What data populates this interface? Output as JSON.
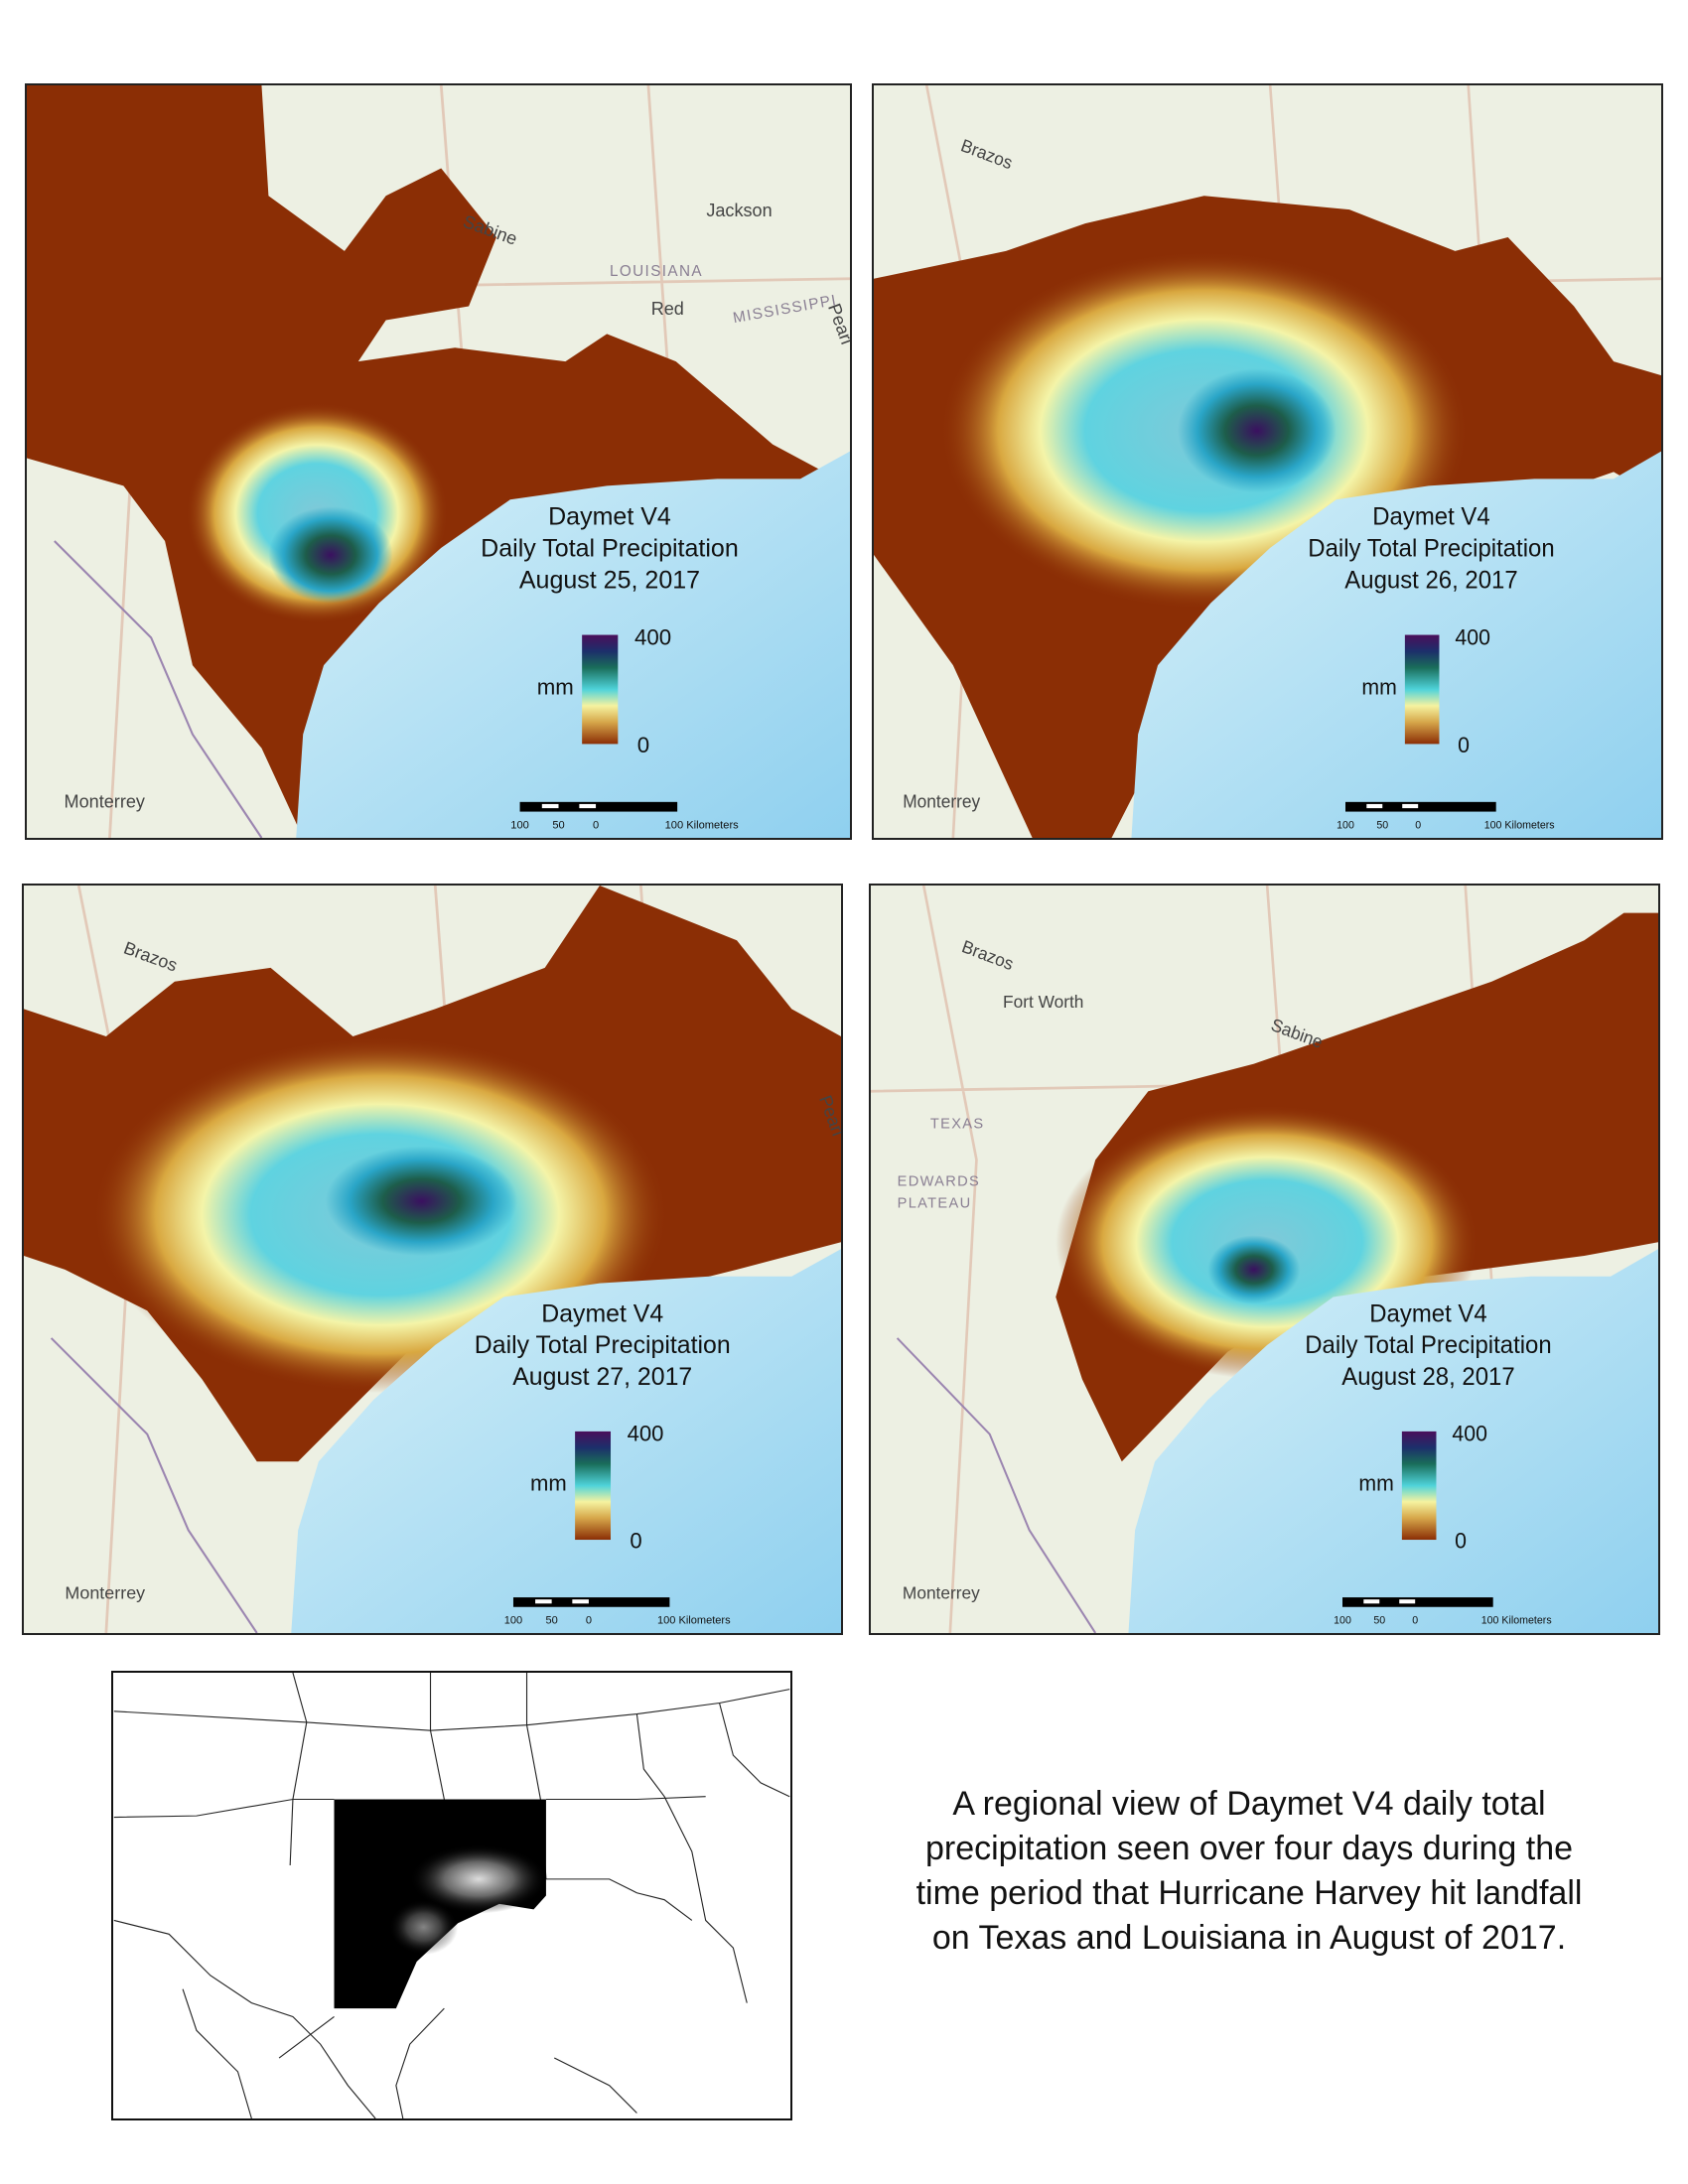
{
  "panels": [
    {
      "title": "Daymet V4",
      "subtitle": "Daily Total Precipitation",
      "date": "August 25, 2017",
      "legend": {
        "max": 400,
        "unit": "mm",
        "min": 0
      },
      "scale_bar": [
        "100",
        "50",
        "0",
        "100 Kilometers"
      ],
      "places": [
        "Jackson",
        "LOUISIANA",
        "MISSISSIPPI",
        "Sabine",
        "Red",
        "Pearl",
        "Monterrey"
      ]
    },
    {
      "title": "Daymet V4",
      "subtitle": "Daily Total Precipitation",
      "date": "August 26, 2017",
      "legend": {
        "max": 400,
        "unit": "mm",
        "min": 0
      },
      "scale_bar": [
        "100",
        "50",
        "0",
        "100 Kilometers"
      ],
      "places": [
        "Brazos",
        "Monterrey"
      ]
    },
    {
      "title": "Daymet V4",
      "subtitle": "Daily Total Precipitation",
      "date": "August 27, 2017",
      "legend": {
        "max": 400,
        "unit": "mm",
        "min": 0
      },
      "scale_bar": [
        "100",
        "50",
        "0",
        "100 Kilometers"
      ],
      "places": [
        "Brazos",
        "Pearl",
        "Monterrey"
      ]
    },
    {
      "title": "Daymet V4",
      "subtitle": "Daily Total Precipitation",
      "date": "August 28, 2017",
      "legend": {
        "max": 400,
        "unit": "mm",
        "min": 0
      },
      "scale_bar": [
        "100",
        "50",
        "0",
        "100 Kilometers"
      ],
      "places": [
        "Brazos",
        "Fort Worth",
        "Sabine",
        "TEXAS",
        "EDWARDS",
        "PLATEAU",
        "Monterrey"
      ]
    }
  ],
  "caption": [
    "A regional view of Daymet V4 daily total",
    "precipitation seen over four days during the",
    "time period that Hurricane Harvey hit landfall",
    "on Texas and Louisiana in August of 2017."
  ]
}
